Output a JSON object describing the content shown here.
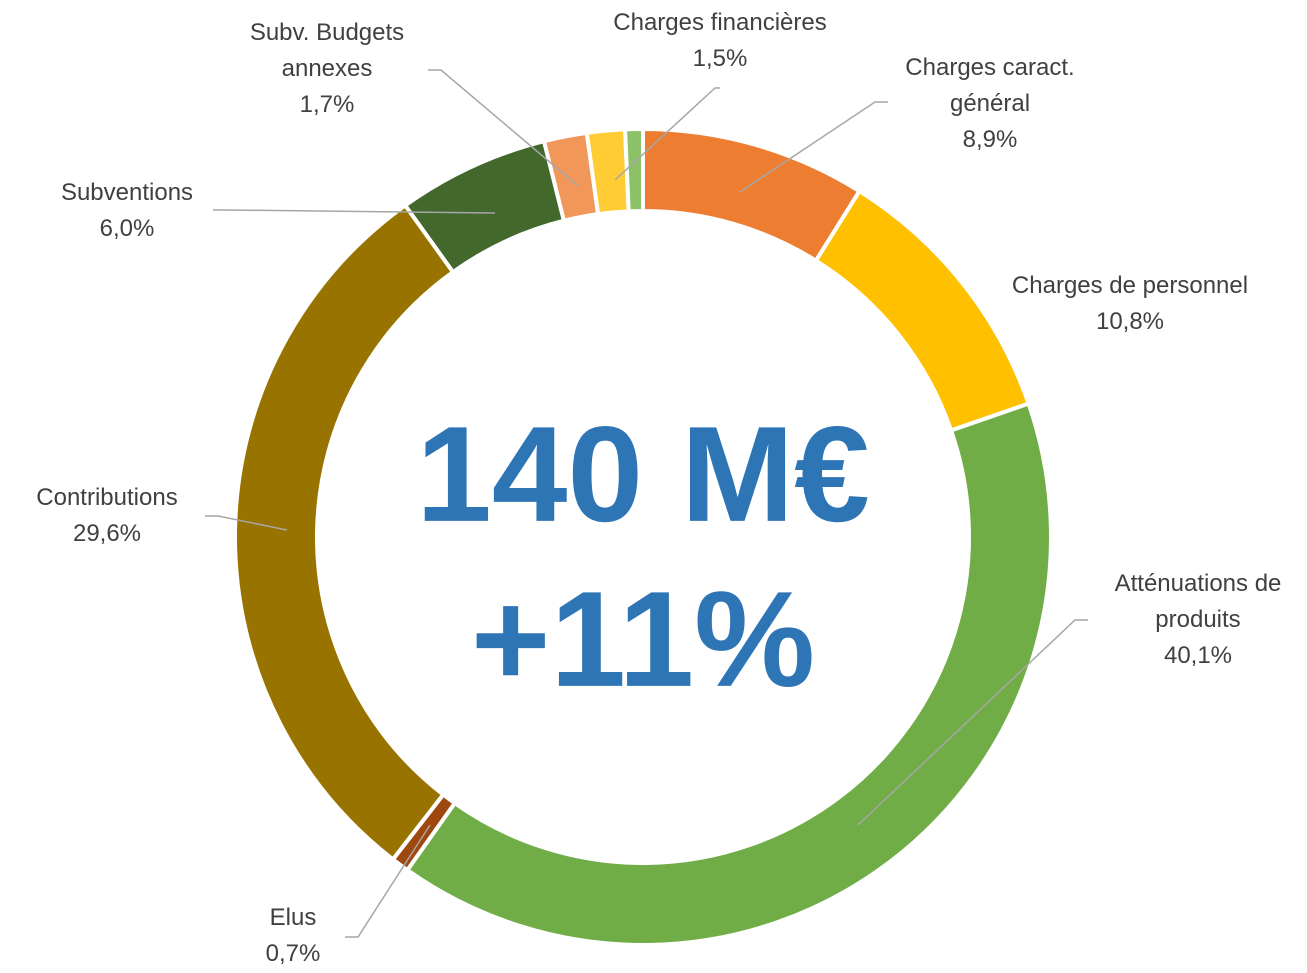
{
  "chart_data": {
    "type": "donut",
    "categories": [
      "Charges caract. général",
      "Charges de personnel",
      "Atténuations de produits",
      "Elus",
      "Contributions",
      "Subventions",
      "Subv. Budgets annexes",
      "Charges financières",
      null
    ],
    "values": [
      8.9,
      10.8,
      40.1,
      0.7,
      29.6,
      6.0,
      1.7,
      1.5,
      0.7
    ],
    "value_labels": [
      "8,9%",
      "10,8%",
      "40,1%",
      "0,7%",
      "29,6%",
      "6,0%",
      "1,7%",
      "1,5%",
      null
    ],
    "colors": [
      "#ED7D31",
      "#FFC000",
      "#70AD47",
      "#9E480E",
      "#997300",
      "#43682B",
      "#F1975A",
      "#FFCD33",
      "#8CC168"
    ],
    "annotations": [
      "140 M€",
      "+11%"
    ]
  }
}
